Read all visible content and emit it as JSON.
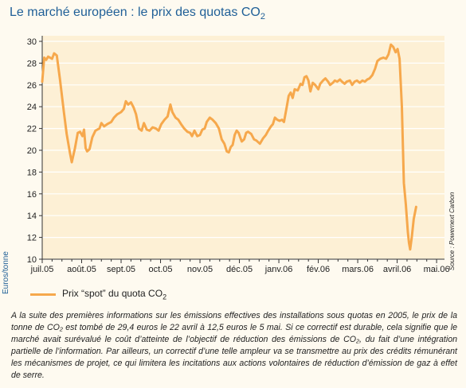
{
  "title": "Le marché européen : le prix des quotas CO",
  "title_subscript": "2",
  "source": "Source : Powernext Carbon",
  "chart_data": {
    "type": "line",
    "ylabel": "Euros/tonne",
    "ylim": [
      10,
      30
    ],
    "yticks": [
      10,
      12,
      14,
      16,
      18,
      20,
      22,
      24,
      26,
      28,
      30
    ],
    "categories": [
      "juil.05",
      "août.05",
      "sept.05",
      "oct.05",
      "nov.05",
      "déc.05",
      "janv.06",
      "fév.06",
      "mars.06",
      "avril.06",
      "mai.06"
    ],
    "x_range": [
      0,
      10.2
    ],
    "series": [
      {
        "name": "Prix “spot” du quota CO2",
        "legend_text": "Prix “spot” du quota CO",
        "legend_sub": "2",
        "color": "#f6a84c",
        "points": [
          [
            0.0,
            26.3
          ],
          [
            0.05,
            28.5
          ],
          [
            0.1,
            28.3
          ],
          [
            0.15,
            28.6
          ],
          [
            0.25,
            28.4
          ],
          [
            0.3,
            28.9
          ],
          [
            0.37,
            28.7
          ],
          [
            0.45,
            26.5
          ],
          [
            0.55,
            23.5
          ],
          [
            0.62,
            21.5
          ],
          [
            0.7,
            19.8
          ],
          [
            0.75,
            18.9
          ],
          [
            0.83,
            20.2
          ],
          [
            0.9,
            21.6
          ],
          [
            0.96,
            21.7
          ],
          [
            1.02,
            21.3
          ],
          [
            1.06,
            21.9
          ],
          [
            1.1,
            20.2
          ],
          [
            1.14,
            19.9
          ],
          [
            1.2,
            20.1
          ],
          [
            1.27,
            21.2
          ],
          [
            1.35,
            21.8
          ],
          [
            1.45,
            22.0
          ],
          [
            1.5,
            22.5
          ],
          [
            1.57,
            22.2
          ],
          [
            1.65,
            22.4
          ],
          [
            1.75,
            22.6
          ],
          [
            1.82,
            23.0
          ],
          [
            1.9,
            23.3
          ],
          [
            2.0,
            23.5
          ],
          [
            2.07,
            23.8
          ],
          [
            2.12,
            24.5
          ],
          [
            2.18,
            24.2
          ],
          [
            2.25,
            24.4
          ],
          [
            2.32,
            23.9
          ],
          [
            2.38,
            23.3
          ],
          [
            2.45,
            22.0
          ],
          [
            2.52,
            21.8
          ],
          [
            2.58,
            22.5
          ],
          [
            2.65,
            21.9
          ],
          [
            2.72,
            21.8
          ],
          [
            2.8,
            22.1
          ],
          [
            2.88,
            22.0
          ],
          [
            2.95,
            21.8
          ],
          [
            3.02,
            22.4
          ],
          [
            3.1,
            22.8
          ],
          [
            3.18,
            23.1
          ],
          [
            3.25,
            24.2
          ],
          [
            3.3,
            23.5
          ],
          [
            3.38,
            23.0
          ],
          [
            3.45,
            22.8
          ],
          [
            3.52,
            22.4
          ],
          [
            3.6,
            22.0
          ],
          [
            3.68,
            21.7
          ],
          [
            3.75,
            21.6
          ],
          [
            3.8,
            21.3
          ],
          [
            3.86,
            21.8
          ],
          [
            3.93,
            21.3
          ],
          [
            4.0,
            21.4
          ],
          [
            4.06,
            21.9
          ],
          [
            4.12,
            22.0
          ],
          [
            4.17,
            22.6
          ],
          [
            4.25,
            23.0
          ],
          [
            4.32,
            22.8
          ],
          [
            4.4,
            22.5
          ],
          [
            4.48,
            22.0
          ],
          [
            4.55,
            21.0
          ],
          [
            4.62,
            20.6
          ],
          [
            4.68,
            19.9
          ],
          [
            4.73,
            19.8
          ],
          [
            4.78,
            20.3
          ],
          [
            4.83,
            20.5
          ],
          [
            4.88,
            21.4
          ],
          [
            4.93,
            21.8
          ],
          [
            4.98,
            21.6
          ],
          [
            5.02,
            21.2
          ],
          [
            5.06,
            20.8
          ],
          [
            5.12,
            21.0
          ],
          [
            5.17,
            21.6
          ],
          [
            5.22,
            21.7
          ],
          [
            5.3,
            21.5
          ],
          [
            5.37,
            21.0
          ],
          [
            5.43,
            20.9
          ],
          [
            5.52,
            20.6
          ],
          [
            5.6,
            21.1
          ],
          [
            5.67,
            21.4
          ],
          [
            5.73,
            21.8
          ],
          [
            5.8,
            22.2
          ],
          [
            5.85,
            22.4
          ],
          [
            5.9,
            23.0
          ],
          [
            5.96,
            22.8
          ],
          [
            6.02,
            22.7
          ],
          [
            6.08,
            22.8
          ],
          [
            6.13,
            22.6
          ],
          [
            6.2,
            24.0
          ],
          [
            6.25,
            25.0
          ],
          [
            6.3,
            25.3
          ],
          [
            6.35,
            24.8
          ],
          [
            6.4,
            25.6
          ],
          [
            6.48,
            25.5
          ],
          [
            6.55,
            26.1
          ],
          [
            6.6,
            26.0
          ],
          [
            6.65,
            26.7
          ],
          [
            6.7,
            26.8
          ],
          [
            6.75,
            26.4
          ],
          [
            6.8,
            25.4
          ],
          [
            6.86,
            26.2
          ],
          [
            6.92,
            26.0
          ],
          [
            7.0,
            25.6
          ],
          [
            7.05,
            26.1
          ],
          [
            7.12,
            26.4
          ],
          [
            7.18,
            26.6
          ],
          [
            7.25,
            26.3
          ],
          [
            7.3,
            26.0
          ],
          [
            7.37,
            26.2
          ],
          [
            7.42,
            26.4
          ],
          [
            7.48,
            26.3
          ],
          [
            7.55,
            26.5
          ],
          [
            7.6,
            26.3
          ],
          [
            7.67,
            26.1
          ],
          [
            7.72,
            26.3
          ],
          [
            7.8,
            26.4
          ],
          [
            7.86,
            26.0
          ],
          [
            7.92,
            26.3
          ],
          [
            7.98,
            26.4
          ],
          [
            8.05,
            26.2
          ],
          [
            8.12,
            26.4
          ],
          [
            8.18,
            26.3
          ],
          [
            8.24,
            26.5
          ],
          [
            8.3,
            26.6
          ],
          [
            8.37,
            26.9
          ],
          [
            8.44,
            27.5
          ],
          [
            8.5,
            28.2
          ],
          [
            8.57,
            28.4
          ],
          [
            8.65,
            28.5
          ],
          [
            8.72,
            28.4
          ],
          [
            8.78,
            28.8
          ],
          [
            8.84,
            29.7
          ],
          [
            8.9,
            29.5
          ],
          [
            8.96,
            29.0
          ],
          [
            9.01,
            29.3
          ],
          [
            9.06,
            28.4
          ],
          [
            9.12,
            24.0
          ],
          [
            9.17,
            17.0
          ],
          [
            9.22,
            15.0
          ],
          [
            9.27,
            12.5
          ],
          [
            9.3,
            11.5
          ],
          [
            9.33,
            10.9
          ],
          [
            9.37,
            12.0
          ],
          [
            9.42,
            13.7
          ],
          [
            9.48,
            14.8
          ]
        ]
      }
    ],
    "grid": "horizontal"
  },
  "caption": "A la suite des premières informations sur les émissions effectives des installations sous quotas en 2005, le prix de la tonne de CO₂ est tombé de 29,4 euros le 22 avril à 12,5 euros le 5 mai. Si ce correctif est durable, cela signifie que le marché avait surévalué le coût d’atteinte de l’objectif de réduction des émissions de CO₂, du fait d’une intégration partielle de l’information. Par ailleurs, un correctif d’une telle ampleur va se transmettre au prix des crédits rémunérant les mécanismes de projet, ce qui limitera les incitations aux actions volontaires de réduction d’émission de gaz à effet de serre."
}
